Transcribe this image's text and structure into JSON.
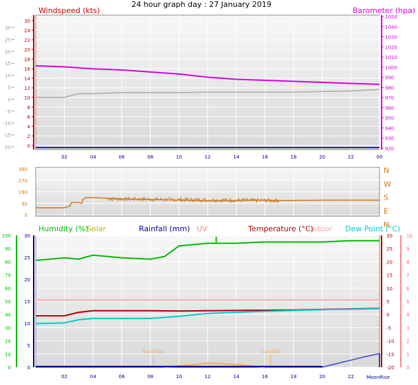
{
  "title": "24 hour graph day : 27 January 2019",
  "panel1": {
    "windspeed_label": "Windspeed (kts)",
    "barometer_label": "Barometer (hpa)",
    "left_ticks": [
      "30",
      "24",
      "22",
      "20",
      "18",
      "16",
      "14",
      "12",
      "10",
      "8",
      "6",
      "4",
      "2",
      "0"
    ],
    "right_ticks": [
      "1050",
      "1040",
      "1030",
      "1020",
      "1010",
      "1000",
      "990",
      "980",
      "970",
      "960",
      "950",
      "940",
      "930",
      "920"
    ],
    "outer_ticks": [
      "30",
      "25",
      "20",
      "15",
      "10",
      "5",
      "0",
      "-5",
      "-10",
      "-15",
      "-20"
    ],
    "x_ticks": [
      "02",
      "04",
      "06",
      "08",
      "10",
      "12",
      "14",
      "16",
      "18",
      "20",
      "22",
      "00"
    ]
  },
  "panel2": {
    "left_ticks": [
      "360",
      "270",
      "180",
      "90",
      "0"
    ],
    "compass": [
      "N",
      "W",
      "S",
      "E",
      "N"
    ]
  },
  "panel3": {
    "legend": {
      "humidity": "Humidity (%)",
      "solar": "Solar",
      "rainfall": "Rainfall (mm)",
      "uv": "UV",
      "temperature": "Temperature (°C)",
      "indoor": "Indoor",
      "dewpoint": "Dew Point (°C)"
    },
    "humidity_ticks": [
      "100",
      "90",
      "80",
      "70",
      "60",
      "50",
      "40",
      "30",
      "20",
      "10",
      "0"
    ],
    "rain_ticks": [
      "30",
      "25",
      "20",
      "15",
      "10",
      "5",
      "0"
    ],
    "temp_ticks": [
      "30",
      "25",
      "20",
      "15",
      "10",
      "5",
      "0",
      "-5",
      "-10",
      "-15",
      "-20"
    ],
    "uv_ticks": [
      "10",
      "9",
      "8",
      "7",
      "6",
      "5",
      "4",
      "3",
      "2",
      "1",
      "0"
    ],
    "x_ticks": [
      "02",
      "04",
      "06",
      "08",
      "10",
      "12",
      "14",
      "16",
      "18",
      "20",
      "22"
    ],
    "sunrise_label": "SunRise",
    "sunset_label": "SunSet",
    "moonrise_label": "MoonRise",
    "sunrise_hour": 8.2,
    "sunset_hour": 16.4,
    "moonrise_hour": 24
  },
  "colors": {
    "windspeed": "#cc0000",
    "barometer": "#dd00dd",
    "humidity": "#00bb00",
    "solar": "#bbaa00",
    "rainfall": "#000099",
    "uv": "#ff8888",
    "temperature": "#aa0000",
    "indoor": "#ffaaaa",
    "dewpoint": "#00cccc",
    "winddir": "#d07a1c",
    "rainline": "#4040dd"
  },
  "chart_data": [
    {
      "type": "line",
      "ylabel": "Windspeed (kts)",
      "y2label": "Barometer (hpa)",
      "ylim": [
        0,
        24
      ],
      "y2lim": [
        920,
        1050
      ],
      "xlim": [
        0,
        24
      ],
      "series": [
        {
          "name": "Barometer (hpa)",
          "axis": "right",
          "x": [
            0,
            2,
            4,
            6,
            8,
            10,
            12,
            14,
            16,
            18,
            20,
            22,
            24
          ],
          "values": [
            1001,
            1000,
            998,
            997,
            995,
            993,
            990,
            988,
            987,
            986,
            985,
            984,
            983
          ]
        },
        {
          "name": "Windspeed (kts)",
          "axis": "left",
          "x": [
            0,
            24
          ],
          "values": [
            0,
            0
          ]
        }
      ],
      "unlabeled_series": [
        {
          "x": [
            0,
            2,
            3,
            4,
            6,
            8,
            10,
            12,
            14,
            16,
            18,
            20,
            22,
            24
          ],
          "values": [
            9.3,
            9.3,
            10,
            10,
            10.2,
            10.2,
            10.2,
            10.3,
            10.3,
            10.3,
            10.3,
            10.4,
            10.5,
            10.8
          ]
        }
      ]
    },
    {
      "type": "line",
      "ylim": [
        0,
        360
      ],
      "xlim": [
        0,
        24
      ],
      "unlabeled_series": [
        {
          "x": [
            0,
            2,
            2.4,
            2.5,
            3,
            3.2,
            3.3,
            3.5,
            4,
            6,
            8,
            10,
            12,
            14,
            16,
            17,
            18,
            20,
            22,
            24
          ],
          "values": [
            55,
            55,
            70,
            95,
            95,
            90,
            120,
            135,
            135,
            125,
            120,
            115,
            110,
            110,
            115,
            112,
            112,
            115,
            115,
            115
          ]
        }
      ]
    },
    {
      "type": "line",
      "ylim": [
        0,
        100
      ],
      "xlim": [
        0,
        24
      ],
      "series": [
        {
          "name": "Humidity (%)",
          "axis": "humidity",
          "x": [
            0,
            2,
            3,
            4,
            6,
            8,
            9,
            10,
            12,
            14,
            16,
            18,
            20,
            22,
            24
          ],
          "values": [
            81,
            83,
            82,
            85,
            83,
            82,
            84,
            92,
            94,
            94,
            95,
            95,
            95,
            96,
            96
          ]
        },
        {
          "name": "Temperature (°C)",
          "axis": "temp",
          "x": [
            0,
            2,
            3,
            4,
            6,
            8,
            10,
            12,
            14,
            16,
            18,
            20,
            22,
            24
          ],
          "values": [
            -0.5,
            -0.5,
            0.8,
            1.4,
            1.4,
            1.4,
            1.3,
            1.4,
            1.5,
            1.6,
            1.7,
            1.9,
            2.1,
            2.3
          ]
        },
        {
          "name": "Dew Point (°C)",
          "axis": "temp",
          "x": [
            0,
            2,
            3,
            4,
            6,
            8,
            10,
            12,
            14,
            16,
            18,
            20,
            22,
            24
          ],
          "values": [
            -3.5,
            -3.2,
            -2,
            -1.5,
            -1.5,
            -1.5,
            -0.7,
            0.4,
            0.8,
            1.2,
            1.5,
            1.8,
            2.0,
            2.2
          ]
        },
        {
          "name": "Indoor",
          "axis": "temp",
          "x": [
            0,
            24
          ],
          "values": [
            5.5,
            5.5
          ]
        },
        {
          "name": "Rainfall (mm)",
          "axis": "rain",
          "x": [
            0,
            20,
            21,
            22,
            23,
            24
          ],
          "values": [
            0,
            0,
            0.8,
            1.6,
            2.4,
            3.1
          ]
        },
        {
          "name": "Solar",
          "axis": "rain",
          "x": [
            9,
            10,
            11,
            12,
            13,
            14,
            15,
            16
          ],
          "values": [
            0,
            0.3,
            0.6,
            0.9,
            0.8,
            0.6,
            0.3,
            0
          ]
        }
      ]
    }
  ]
}
